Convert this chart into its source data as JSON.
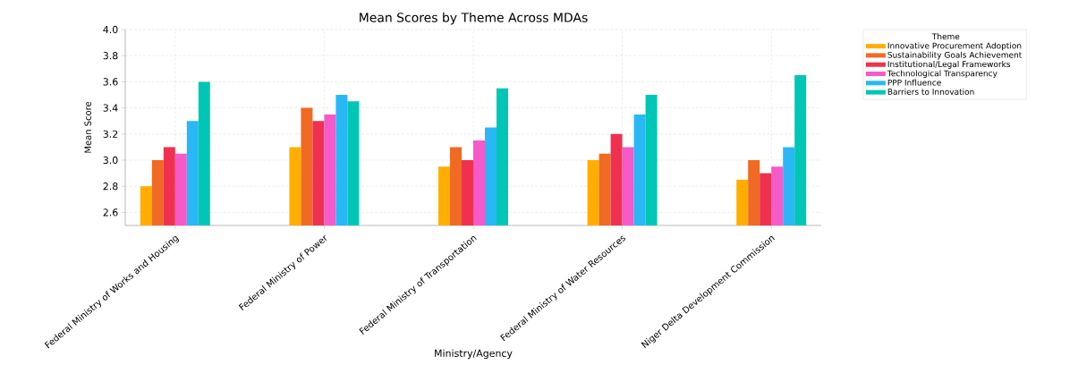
{
  "chart_data": {
    "type": "bar",
    "title": "Mean Scores by Theme Across MDAs",
    "xlabel": "Ministry/Agency",
    "ylabel": "Mean Score",
    "legend_title": "Theme",
    "categories": [
      "Federal Ministry of Works and Housing",
      "Federal Ministry of Power",
      "Federal Ministry of Transportation",
      "Federal Ministry of Water Resources",
      "Niger Delta Development Commission"
    ],
    "series": [
      {
        "name": "Innovative Procurement Adoption",
        "color": "#ffae00",
        "values": [
          2.8,
          3.1,
          2.95,
          3.0,
          2.85
        ]
      },
      {
        "name": "Sustainability Goals Achievement",
        "color": "#f06a23",
        "values": [
          3.0,
          3.4,
          3.1,
          3.05,
          3.0
        ]
      },
      {
        "name": "Institutional/Legal Frameworks",
        "color": "#f0304f",
        "values": [
          3.1,
          3.3,
          3.0,
          3.2,
          2.9
        ]
      },
      {
        "name": "Technological Transparency",
        "color": "#f55ac8",
        "values": [
          3.05,
          3.35,
          3.15,
          3.1,
          2.95
        ]
      },
      {
        "name": "PPP Influence",
        "color": "#2ab7f6",
        "values": [
          3.3,
          3.5,
          3.25,
          3.35,
          3.1
        ]
      },
      {
        "name": "Barriers to Innovation",
        "color": "#00c7b5",
        "values": [
          3.6,
          3.45,
          3.55,
          3.5,
          3.65
        ]
      }
    ],
    "ylim": [
      2.5,
      4.0
    ],
    "yticks": [
      2.6,
      2.8,
      {
        "value": 3,
        "label": "3.0"
      },
      3.2,
      3.4,
      3.6,
      3.8,
      {
        "value": 4,
        "label": "4.0"
      }
    ],
    "grid": true,
    "legend": "top right"
  }
}
